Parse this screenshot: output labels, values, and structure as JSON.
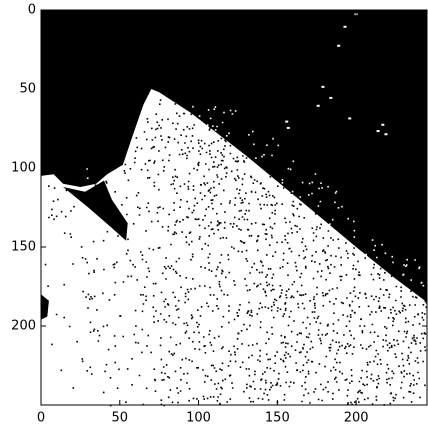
{
  "chart_data": {
    "type": "image",
    "xlim": [
      0,
      245
    ],
    "ylim": [
      250,
      0
    ],
    "xticks": [
      0,
      50,
      100,
      150,
      200
    ],
    "yticks": [
      0,
      50,
      100,
      150,
      200
    ]
  }
}
